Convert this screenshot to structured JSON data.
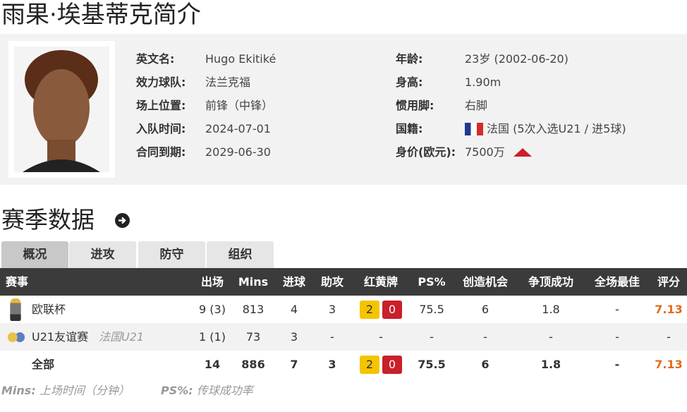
{
  "title": "雨果·埃基蒂克简介",
  "profile": {
    "left": [
      {
        "label": "英文名:",
        "value": "Hugo Ekitiké"
      },
      {
        "label": "效力球队:",
        "value": "法兰克福"
      },
      {
        "label": "场上位置:",
        "value": "前锋（中锋）"
      },
      {
        "label": "入队时间:",
        "value": "2024-07-01"
      },
      {
        "label": "合同到期:",
        "value": "2029-06-30"
      }
    ],
    "right": [
      {
        "label": "年龄:",
        "value": "23岁  (2002-06-20)"
      },
      {
        "label": "身高:",
        "value": "1.90m"
      },
      {
        "label": "惯用脚:",
        "value": "右脚"
      },
      {
        "label": "国籍:",
        "value": "法国 (5次入选U21 / 进5球)",
        "icon": "france-flag-icon"
      },
      {
        "label": "身价(欧元):",
        "value": "7500万",
        "icon": "trend-up-icon",
        "icon_color": "#c9202b"
      }
    ]
  },
  "season": {
    "title": "赛季数据",
    "icon": "arrow-circle-right-icon",
    "tabs": [
      "概况",
      "进攻",
      "防守",
      "组织"
    ],
    "active_tab": 0
  },
  "table": {
    "headers": [
      "赛事",
      "出场",
      "Mins",
      "进球",
      "助攻",
      "红黄牌",
      "PS%",
      "创造机会",
      "争顶成功",
      "全场最佳",
      "评分"
    ],
    "rows": [
      {
        "comp": "欧联杯",
        "sub": "",
        "icon": "europa-league-icon",
        "cells": [
          "9 (3)",
          "813",
          "4",
          "3"
        ],
        "yellow": "2",
        "red": "0",
        "rest": [
          "75.5",
          "6",
          "1.8",
          "-",
          "7.13"
        ]
      },
      {
        "comp": "U21友谊赛",
        "sub": "法国U21",
        "icon": "friendly-icon",
        "cells": [
          "1 (1)",
          "73",
          "3",
          "-"
        ],
        "cards": "-",
        "rest": [
          "-",
          "-",
          "-",
          "-",
          "-"
        ]
      },
      {
        "comp": "全部",
        "sub": "",
        "cells": [
          "14",
          "886",
          "7",
          "3"
        ],
        "yellow": "2",
        "red": "0",
        "rest": [
          "75.5",
          "6",
          "1.8",
          "-",
          "7.13"
        ]
      }
    ]
  },
  "footnote": {
    "k1": "Mins:",
    "v1": "上场时间（分钟）",
    "k2": "PS%:",
    "v2": "传球成功率"
  },
  "colors": {
    "header_bg": "#3b3b3b",
    "rating": "#e06c1a",
    "yellow": "#f5c400",
    "red": "#c9202b"
  }
}
